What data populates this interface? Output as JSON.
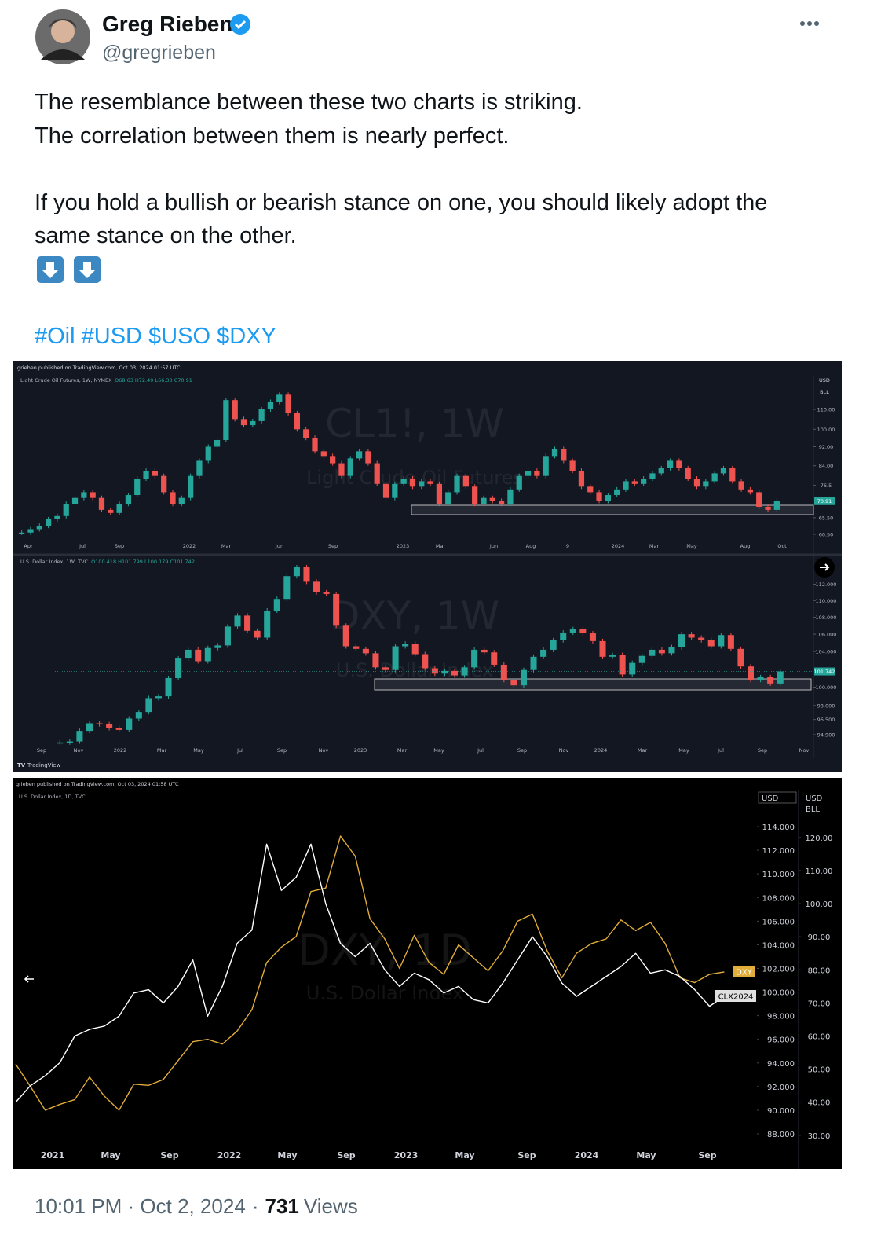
{
  "tweet": {
    "author": "Greg Rieben",
    "handle": "@gregrieben",
    "text_lines": [
      "The resemblance between these two charts is striking.",
      "The correlation between them is nearly perfect.",
      "If you hold a bullish or bearish stance on one, you should likely adopt the",
      "same stance on the other."
    ],
    "hashtags": "#Oil #USD $USO $DXY",
    "timestamp": "10:01 PM · Oct 2, 2024",
    "separator": "·",
    "views": 731,
    "views_word": "Views"
  },
  "charts": [
    {
      "published": "grieben published on TradingView.com, Oct 03, 2024 01:57 UTC",
      "footer": "TradingView",
      "panels": [
        {
          "type": "candlestick",
          "info": "Light Crude Oil Futures, 1W, NYMEX",
          "ohlc": "O68.63 H72.49 L66.33 C70.91",
          "watermark": "CL1!, 1W",
          "watermark_sub": "Light Crude Oil Futures",
          "axis_header": [
            "USD",
            "BLL"
          ],
          "log": true,
          "ylim": [
            58.7,
            129.3
          ],
          "yticks": [
            {
              "value": 110,
              "label": "110.00"
            },
            {
              "value": 100,
              "label": "100.00"
            },
            {
              "value": 92,
              "label": "92.00"
            },
            {
              "value": 84,
              "label": "84.00"
            },
            76.5,
            {
              "value": 65.5,
              "label": "65.50"
            },
            {
              "value": 60.5,
              "label": "60.50"
            }
          ],
          "last_price": 70.91,
          "xticks": [
            "Apr",
            "Jul",
            "Sep",
            "2022",
            "Mar",
            "Jun",
            "Sep",
            "2023",
            "Mar",
            "Jun",
            "Aug",
            "9",
            "2024",
            "Mar",
            "May",
            "Aug",
            "Oct"
          ],
          "closes": [
            61,
            62,
            63,
            65,
            66,
            70,
            72,
            74,
            72,
            68,
            67,
            70,
            73,
            79,
            82,
            80,
            74,
            70,
            72,
            80,
            86,
            92,
            95,
            115,
            105,
            102,
            104,
            110,
            114,
            118,
            108,
            100,
            96,
            90,
            88,
            85,
            80,
            87,
            90,
            85,
            77,
            72,
            77,
            79,
            76,
            78,
            77,
            70,
            74,
            80,
            76,
            70,
            72,
            71,
            70,
            75,
            80,
            82,
            80,
            88,
            91,
            86,
            82,
            76,
            74,
            71,
            73,
            75,
            78,
            77,
            79,
            81,
            83,
            86,
            83,
            79,
            76,
            78,
            81,
            83,
            78,
            75,
            74,
            69,
            68,
            70.91
          ]
        },
        {
          "type": "candlestick",
          "info": "U.S. Dollar Index, 1W, TVC",
          "ohlc": "O100.418 H101.799 L100.179 C101.742",
          "watermark": "DXY, 1W",
          "watermark_sub": "U.S. Dollar Index",
          "log": true,
          "ylim": [
            94.0,
            114.3
          ],
          "yticks": [
            {
              "value": 112,
              "label": "112.000"
            },
            {
              "value": 110,
              "label": "110.000"
            },
            {
              "value": 108,
              "label": "108.000"
            },
            {
              "value": 106,
              "label": "106.000"
            },
            {
              "value": 104,
              "label": "104.000"
            },
            {
              "value": 100,
              "label": "100.000"
            },
            {
              "value": 98,
              "label": "98.000"
            },
            {
              "value": 96.5,
              "label": "96.500"
            },
            {
              "value": 94.9,
              "label": "94.900"
            }
          ],
          "last_price": 101.742,
          "xticks": [
            "Sep",
            "Nov",
            "2022",
            "Mar",
            "May",
            "Jul",
            "Sep",
            "Nov",
            "2023",
            "Mar",
            "May",
            "Jul",
            "Sep",
            "Nov",
            "2024",
            "Mar",
            "May",
            "Jul",
            "Sep",
            "Nov"
          ],
          "closes": [
            94.1,
            94.2,
            95.3,
            96.1,
            96.0,
            95.6,
            95.4,
            96.6,
            97.3,
            98.8,
            99.0,
            101.0,
            103.2,
            104.2,
            102.9,
            104.4,
            104.7,
            106.9,
            108.2,
            106.4,
            105.6,
            108.8,
            110.2,
            113.0,
            114.1,
            112.3,
            111.0,
            110.8,
            107.0,
            104.6,
            104.3,
            103.8,
            102.2,
            101.9,
            104.6,
            104.9,
            103.7,
            102.1,
            101.5,
            101.8,
            101.3,
            102.2,
            104.2,
            103.9,
            102.5,
            100.8,
            100.2,
            101.9,
            103.4,
            104.2,
            105.3,
            106.2,
            106.6,
            106.1,
            105.2,
            103.4,
            103.6,
            101.4,
            102.7,
            103.5,
            104.2,
            103.8,
            104.5,
            106.0,
            105.6,
            105.3,
            104.6,
            105.9,
            104.3,
            102.3,
            100.8,
            101.1,
            100.4,
            101.742
          ]
        }
      ]
    },
    {
      "type": "line",
      "published": "grieben published on TradingView.com, Oct 03, 2024 01:58 UTC",
      "info": "U.S. Dollar Index, 1D, TVC",
      "watermark": "DXY, 1D",
      "watermark_sub": "U.S. Dollar Index",
      "axis_header": "USD",
      "axis2_header": [
        "USD",
        "BLL"
      ],
      "xticks": [
        "2021",
        "May",
        "Sep",
        "2022",
        "May",
        "Sep",
        "2023",
        "May",
        "Sep",
        "2024",
        "May",
        "Sep"
      ],
      "ylim": [
        86.87,
        116.13
      ],
      "yticks": [
        {
          "value": 114,
          "label": "114.000"
        },
        {
          "value": 112,
          "label": "112.000"
        },
        {
          "value": 110,
          "label": "110.000"
        },
        {
          "value": 108,
          "label": "108.000"
        },
        {
          "value": 106,
          "label": "106.000"
        },
        {
          "value": 104,
          "label": "104.000"
        },
        {
          "value": 102,
          "label": "102.000"
        },
        {
          "value": 100,
          "label": "100.000"
        },
        {
          "value": 98,
          "label": "98.000"
        },
        {
          "value": 96,
          "label": "96.000"
        },
        {
          "value": 94,
          "label": "94.000"
        },
        {
          "value": 92,
          "label": "92.000"
        },
        {
          "value": 90,
          "label": "90.000"
        },
        {
          "value": 88,
          "label": "88.000"
        }
      ],
      "y2lim": [
        26.4,
        130.9
      ],
      "y2ticks": [
        {
          "value": 120,
          "label": "120.00"
        },
        {
          "value": 110,
          "label": "110.00"
        },
        {
          "value": 100,
          "label": "100.00"
        },
        {
          "value": 90,
          "label": "90.00"
        },
        {
          "value": 80,
          "label": "80.00"
        },
        {
          "value": 70,
          "label": "70.00"
        },
        {
          "value": 60,
          "label": "60.00"
        },
        {
          "value": 50,
          "label": "50.00"
        },
        {
          "value": 40,
          "label": "40.00"
        },
        {
          "value": 30,
          "label": "30.00"
        }
      ],
      "series": [
        {
          "name": "DXY",
          "color": "#e0ac3a",
          "values": [
            93.9,
            92.0,
            90.0,
            90.5,
            90.9,
            92.8,
            91.2,
            90.0,
            92.2,
            92.1,
            92.6,
            94.2,
            95.8,
            96.0,
            95.6,
            96.7,
            98.5,
            102.5,
            103.8,
            104.7,
            108.5,
            108.8,
            113.2,
            111.5,
            106.2,
            104.5,
            102.0,
            104.8,
            102.5,
            101.5,
            104.0,
            102.9,
            101.8,
            103.5,
            106.0,
            106.6,
            103.5,
            101.2,
            103.3,
            104.1,
            104.5,
            106.1,
            105.2,
            105.9,
            104.1,
            101.2,
            100.8,
            101.5,
            101.7
          ]
        },
        {
          "name": "CLX2024",
          "color": "#ffffff",
          "axis": "y2",
          "values": [
            40,
            45,
            48,
            52,
            60,
            62,
            63,
            66,
            73,
            74,
            70,
            75,
            83,
            66,
            75,
            88,
            92,
            118,
            104,
            108,
            118,
            100,
            88,
            84,
            88,
            80,
            75,
            79,
            77,
            73,
            75,
            71,
            70,
            76,
            83,
            90,
            84,
            76,
            72,
            75,
            78,
            81,
            85,
            79,
            80,
            78,
            74,
            69,
            72
          ]
        }
      ]
    }
  ]
}
